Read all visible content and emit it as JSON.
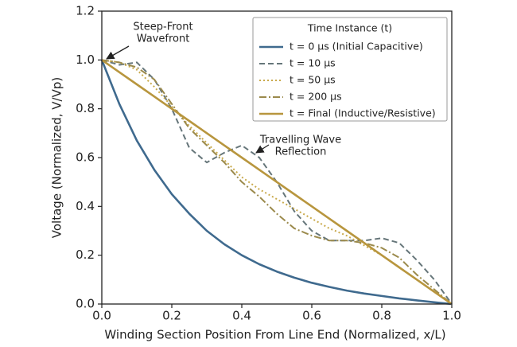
{
  "chart_data": {
    "type": "line",
    "x_label": "Winding Section Position From Line End (Normalized, x/L)",
    "y_label": "Voltage (Normalized, V/Vp)",
    "x": [
      0,
      0.05,
      0.1,
      0.15,
      0.2,
      0.25,
      0.3,
      0.35,
      0.4,
      0.45,
      0.5,
      0.55,
      0.6,
      0.65,
      0.7,
      0.75,
      0.8,
      0.85,
      0.9,
      0.95,
      1
    ],
    "series": [
      {
        "name": "t = 0 µs (Initial Capacitive)",
        "color": "#3f6a8e",
        "dash": "solid",
        "values": [
          1,
          0.82,
          0.67,
          0.55,
          0.45,
          0.37,
          0.3,
          0.245,
          0.2,
          0.163,
          0.133,
          0.108,
          0.087,
          0.07,
          0.055,
          0.043,
          0.033,
          0.023,
          0.015,
          0.007,
          0
        ]
      },
      {
        "name": "t = 10 µs",
        "color": "#66767a",
        "dash": "dashed",
        "values": [
          1,
          0.98,
          0.99,
          0.92,
          0.8,
          0.64,
          0.58,
          0.62,
          0.65,
          0.6,
          0.5,
          0.38,
          0.3,
          0.26,
          0.26,
          0.26,
          0.27,
          0.25,
          0.18,
          0.1,
          0
        ]
      },
      {
        "name": "t = 50 µs",
        "color": "#c9aa4c",
        "dash": "dotted",
        "values": [
          1,
          0.99,
          0.96,
          0.89,
          0.81,
          0.73,
          0.66,
          0.59,
          0.52,
          0.47,
          0.43,
          0.39,
          0.35,
          0.31,
          0.28,
          0.24,
          0.2,
          0.15,
          0.1,
          0.05,
          0
        ]
      },
      {
        "name": "t = 200 µs",
        "color": "#9b8a4c",
        "dash": "dashdot",
        "values": [
          1,
          0.99,
          0.97,
          0.92,
          0.82,
          0.72,
          0.65,
          0.58,
          0.5,
          0.44,
          0.37,
          0.31,
          0.28,
          0.26,
          0.26,
          0.25,
          0.23,
          0.19,
          0.12,
          0.06,
          0
        ]
      },
      {
        "name": "t = Final (Inductive/Resistive)",
        "color": "#b8963e",
        "dash": "solid",
        "values": [
          1,
          0.95,
          0.9,
          0.85,
          0.8,
          0.75,
          0.7,
          0.65,
          0.6,
          0.55,
          0.5,
          0.45,
          0.4,
          0.35,
          0.3,
          0.25,
          0.2,
          0.15,
          0.1,
          0.05,
          0
        ]
      }
    ],
    "legend_title": "Time Instance (t)",
    "legend": "upper right",
    "xlim": [
      0,
      1
    ],
    "ylim": [
      0,
      1.2
    ],
    "xticks": [
      {
        "value": 0,
        "label": "0.0"
      },
      0.2,
      0.4,
      0.6,
      0.8,
      {
        "value": 1,
        "label": "1.0"
      }
    ],
    "yticks": [
      {
        "value": 0,
        "label": "0.0"
      },
      0.2,
      0.4,
      0.6,
      0.8,
      {
        "value": 1,
        "label": "1.0"
      },
      1.2
    ],
    "annotations": [
      {
        "lines": [
          "Steep-Front",
          "Wavefront"
        ]
      },
      {
        "lines": [
          "Travelling Wave",
          "Reflection"
        ]
      }
    ]
  }
}
